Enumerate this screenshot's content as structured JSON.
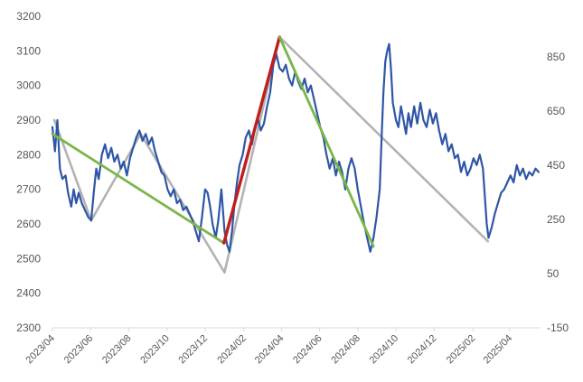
{
  "chart_data": {
    "type": "line",
    "title": "",
    "grid": false,
    "legend": "none",
    "x_tick_labels": [
      "2023/04",
      "2023/06",
      "2023/08",
      "2023/10",
      "2023/12",
      "2024/02",
      "2024/04",
      "2024/06",
      "2024/08",
      "2024/10",
      "2024/12",
      "2025/02",
      "2025/04"
    ],
    "x_range": [
      "2023-04-01",
      "2025-05-20"
    ],
    "y_left": {
      "ticks": [
        2300,
        2400,
        2500,
        2600,
        2700,
        2800,
        2900,
        3000,
        3100,
        3200
      ],
      "range": [
        2300,
        3200
      ]
    },
    "y_right": {
      "ticks": [
        -150,
        50,
        250,
        450,
        650,
        850
      ],
      "range": [
        -150,
        1000
      ]
    },
    "series": [
      {
        "role": "price",
        "axis": "left",
        "color": "#2f56a6",
        "points": [
          [
            "2023-04-01",
            2880
          ],
          [
            "2023-04-05",
            2810
          ],
          [
            "2023-04-09",
            2900
          ],
          [
            "2023-04-13",
            2760
          ],
          [
            "2023-04-17",
            2730
          ],
          [
            "2023-04-22",
            2740
          ],
          [
            "2023-04-26",
            2690
          ],
          [
            "2023-05-01",
            2650
          ],
          [
            "2023-05-05",
            2700
          ],
          [
            "2023-05-09",
            2660
          ],
          [
            "2023-05-13",
            2690
          ],
          [
            "2023-05-18",
            2660
          ],
          [
            "2023-05-23",
            2640
          ],
          [
            "2023-05-28",
            2620
          ],
          [
            "2023-06-02",
            2610
          ],
          [
            "2023-06-06",
            2690
          ],
          [
            "2023-06-10",
            2760
          ],
          [
            "2023-06-14",
            2730
          ],
          [
            "2023-06-19",
            2800
          ],
          [
            "2023-06-24",
            2830
          ],
          [
            "2023-06-29",
            2790
          ],
          [
            "2023-07-04",
            2820
          ],
          [
            "2023-07-09",
            2780
          ],
          [
            "2023-07-14",
            2800
          ],
          [
            "2023-07-19",
            2760
          ],
          [
            "2023-07-24",
            2780
          ],
          [
            "2023-07-29",
            2740
          ],
          [
            "2023-08-03",
            2790
          ],
          [
            "2023-08-08",
            2820
          ],
          [
            "2023-08-13",
            2850
          ],
          [
            "2023-08-18",
            2870
          ],
          [
            "2023-08-23",
            2840
          ],
          [
            "2023-08-28",
            2860
          ],
          [
            "2023-09-02",
            2830
          ],
          [
            "2023-09-07",
            2850
          ],
          [
            "2023-09-12",
            2810
          ],
          [
            "2023-09-17",
            2780
          ],
          [
            "2023-09-22",
            2750
          ],
          [
            "2023-09-27",
            2740
          ],
          [
            "2023-10-02",
            2700
          ],
          [
            "2023-10-07",
            2680
          ],
          [
            "2023-10-12",
            2700
          ],
          [
            "2023-10-17",
            2660
          ],
          [
            "2023-10-22",
            2670
          ],
          [
            "2023-10-27",
            2640
          ],
          [
            "2023-11-01",
            2650
          ],
          [
            "2023-11-06",
            2630
          ],
          [
            "2023-11-11",
            2610
          ],
          [
            "2023-11-16",
            2580
          ],
          [
            "2023-11-21",
            2550
          ],
          [
            "2023-11-26",
            2620
          ],
          [
            "2023-12-01",
            2700
          ],
          [
            "2023-12-05",
            2690
          ],
          [
            "2023-12-09",
            2650
          ],
          [
            "2023-12-13",
            2600
          ],
          [
            "2023-12-18",
            2560
          ],
          [
            "2023-12-22",
            2610
          ],
          [
            "2023-12-27",
            2700
          ],
          [
            "2024-01-01",
            2580
          ],
          [
            "2024-01-05",
            2540
          ],
          [
            "2024-01-09",
            2520
          ],
          [
            "2024-01-13",
            2580
          ],
          [
            "2024-01-17",
            2660
          ],
          [
            "2024-01-21",
            2720
          ],
          [
            "2024-01-25",
            2770
          ],
          [
            "2024-01-30",
            2800
          ],
          [
            "2024-02-04",
            2850
          ],
          [
            "2024-02-09",
            2870
          ],
          [
            "2024-02-14",
            2830
          ],
          [
            "2024-02-19",
            2880
          ],
          [
            "2024-02-24",
            2900
          ],
          [
            "2024-02-28",
            2870
          ],
          [
            "2024-03-04",
            2890
          ],
          [
            "2024-03-09",
            2940
          ],
          [
            "2024-03-14",
            2980
          ],
          [
            "2024-03-19",
            3060
          ],
          [
            "2024-03-24",
            3090
          ],
          [
            "2024-03-29",
            3050
          ],
          [
            "2024-04-03",
            3040
          ],
          [
            "2024-04-08",
            3060
          ],
          [
            "2024-04-13",
            3020
          ],
          [
            "2024-04-18",
            3000
          ],
          [
            "2024-04-23",
            3040
          ],
          [
            "2024-04-28",
            3010
          ],
          [
            "2024-05-03",
            2990
          ],
          [
            "2024-05-08",
            3020
          ],
          [
            "2024-05-13",
            2980
          ],
          [
            "2024-05-18",
            3000
          ],
          [
            "2024-05-23",
            2960
          ],
          [
            "2024-05-28",
            2920
          ],
          [
            "2024-06-02",
            2880
          ],
          [
            "2024-06-07",
            2850
          ],
          [
            "2024-06-12",
            2800
          ],
          [
            "2024-06-17",
            2760
          ],
          [
            "2024-06-22",
            2790
          ],
          [
            "2024-06-27",
            2740
          ],
          [
            "2024-07-02",
            2780
          ],
          [
            "2024-07-07",
            2750
          ],
          [
            "2024-07-12",
            2700
          ],
          [
            "2024-07-17",
            2760
          ],
          [
            "2024-07-22",
            2790
          ],
          [
            "2024-07-27",
            2760
          ],
          [
            "2024-08-01",
            2700
          ],
          [
            "2024-08-06",
            2650
          ],
          [
            "2024-08-11",
            2600
          ],
          [
            "2024-08-16",
            2560
          ],
          [
            "2024-08-21",
            2520
          ],
          [
            "2024-08-26",
            2560
          ],
          [
            "2024-08-31",
            2620
          ],
          [
            "2024-09-05",
            2700
          ],
          [
            "2024-09-08",
            2850
          ],
          [
            "2024-09-11",
            2980
          ],
          [
            "2024-09-14",
            3070
          ],
          [
            "2024-09-17",
            3100
          ],
          [
            "2024-09-20",
            3120
          ],
          [
            "2024-09-23",
            3050
          ],
          [
            "2024-09-26",
            2950
          ],
          [
            "2024-10-01",
            2900
          ],
          [
            "2024-10-05",
            2880
          ],
          [
            "2024-10-09",
            2940
          ],
          [
            "2024-10-13",
            2900
          ],
          [
            "2024-10-17",
            2860
          ],
          [
            "2024-10-21",
            2920
          ],
          [
            "2024-10-25",
            2880
          ],
          [
            "2024-10-30",
            2940
          ],
          [
            "2024-11-04",
            2890
          ],
          [
            "2024-11-09",
            2950
          ],
          [
            "2024-11-14",
            2900
          ],
          [
            "2024-11-19",
            2880
          ],
          [
            "2024-11-24",
            2930
          ],
          [
            "2024-11-29",
            2890
          ],
          [
            "2024-12-04",
            2920
          ],
          [
            "2024-12-09",
            2870
          ],
          [
            "2024-12-14",
            2830
          ],
          [
            "2024-12-19",
            2860
          ],
          [
            "2024-12-24",
            2810
          ],
          [
            "2024-12-29",
            2830
          ],
          [
            "2025-01-03",
            2790
          ],
          [
            "2025-01-08",
            2800
          ],
          [
            "2025-01-13",
            2750
          ],
          [
            "2025-01-18",
            2780
          ],
          [
            "2025-01-23",
            2740
          ],
          [
            "2025-01-28",
            2760
          ],
          [
            "2025-02-02",
            2790
          ],
          [
            "2025-02-07",
            2770
          ],
          [
            "2025-02-12",
            2800
          ],
          [
            "2025-02-17",
            2760
          ],
          [
            "2025-02-20",
            2680
          ],
          [
            "2025-02-23",
            2600
          ],
          [
            "2025-02-26",
            2560
          ],
          [
            "2025-03-03",
            2590
          ],
          [
            "2025-03-08",
            2630
          ],
          [
            "2025-03-13",
            2660
          ],
          [
            "2025-03-18",
            2690
          ],
          [
            "2025-03-23",
            2700
          ],
          [
            "2025-03-28",
            2720
          ],
          [
            "2025-04-02",
            2740
          ],
          [
            "2025-04-07",
            2720
          ],
          [
            "2025-04-12",
            2770
          ],
          [
            "2025-04-17",
            2740
          ],
          [
            "2025-04-22",
            2760
          ],
          [
            "2025-04-27",
            2730
          ],
          [
            "2025-05-02",
            2750
          ],
          [
            "2025-05-07",
            2740
          ],
          [
            "2025-05-12",
            2760
          ],
          [
            "2025-05-17",
            2750
          ]
        ]
      },
      {
        "role": "swing-zigzag",
        "axis": "left",
        "color": "#b3b3b3",
        "points": [
          [
            "2023-04-04",
            2900
          ],
          [
            "2023-06-02",
            2610
          ],
          [
            "2023-08-20",
            2860
          ],
          [
            "2024-01-01",
            2460
          ],
          [
            "2024-03-29",
            3140
          ],
          [
            "2025-02-25",
            2550
          ]
        ]
      },
      {
        "role": "down-trendline-1",
        "axis": "left",
        "color": "#7ab648",
        "points": [
          [
            "2023-04-01",
            2860
          ],
          [
            "2023-12-31",
            2545
          ]
        ]
      },
      {
        "role": "up-trendline",
        "axis": "left",
        "color": "#c01f1f",
        "points": [
          [
            "2023-12-31",
            2545
          ],
          [
            "2024-03-29",
            3140
          ]
        ]
      },
      {
        "role": "down-trendline-2",
        "axis": "left",
        "color": "#7ab648",
        "points": [
          [
            "2024-03-29",
            3140
          ],
          [
            "2024-08-26",
            2535
          ]
        ]
      }
    ]
  }
}
